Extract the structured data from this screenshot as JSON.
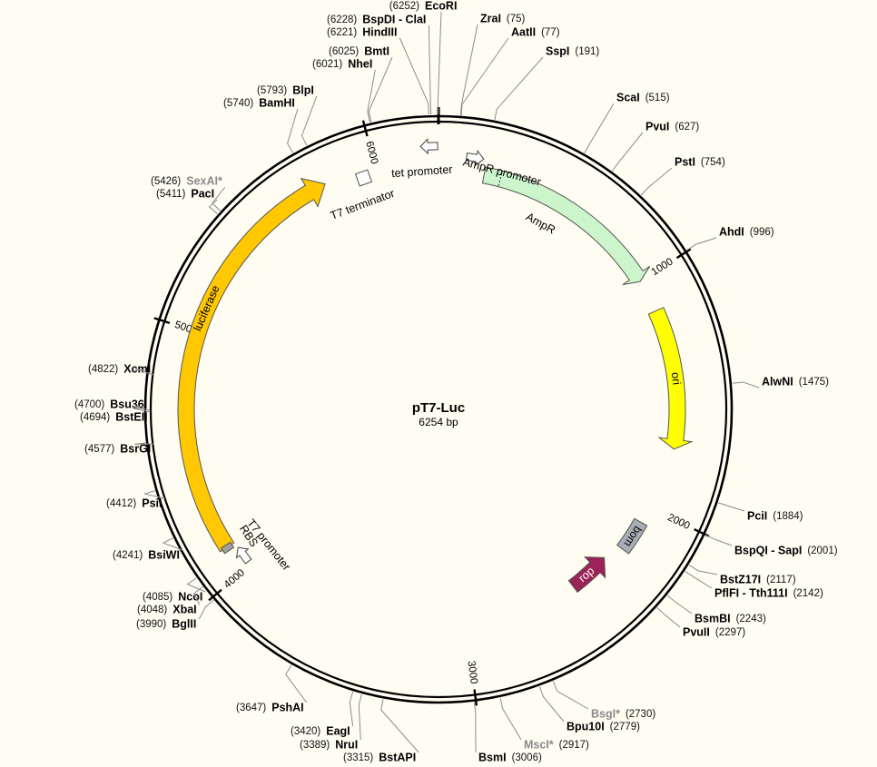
{
  "plasmid": {
    "name": "pT7-Luc",
    "size_label": "6254 bp",
    "length": 6254
  },
  "ticks": [
    1000,
    2000,
    3000,
    4000,
    5000,
    6000
  ],
  "features": [
    {
      "id": "ampr",
      "label": "AmpR",
      "type": "cds",
      "start": 191,
      "end": 1001,
      "strand": 1,
      "color": "#ccf5cc"
    },
    {
      "id": "ori",
      "label": "ori",
      "type": "origin",
      "start": 1140,
      "end": 1730,
      "strand": 1,
      "color": "#ffff00"
    },
    {
      "id": "bom",
      "label": "bom",
      "type": "box",
      "start": 2070,
      "end": 2210,
      "strand": 1,
      "color": "#a6adb4"
    },
    {
      "id": "rop",
      "label": "rop",
      "type": "cds",
      "start": 2290,
      "end": 2480,
      "strand": -1,
      "color": "#9b2355"
    },
    {
      "id": "luciferase",
      "label": "luciferase",
      "type": "cds",
      "start": 4115,
      "end": 5790,
      "strand": 1,
      "color": "#ffc800"
    },
    {
      "id": "rbs",
      "label": "RBS",
      "type": "box",
      "start": 4100,
      "end": 4125,
      "strand": 1,
      "color": "#a0a0a0"
    },
    {
      "id": "t7-promoter",
      "label": "T7 promoter",
      "type": "promoter",
      "start": 4030,
      "end": 4075,
      "strand": 1,
      "color": "#ffffff"
    },
    {
      "id": "t7-terminator",
      "label": "T7 terminator",
      "type": "terminator",
      "start": 5920,
      "end": 5965,
      "strand": 1,
      "color": "#ffffff"
    },
    {
      "id": "tet-promoter",
      "label": "tet promoter",
      "type": "promoter",
      "start": 6205,
      "end": 6235,
      "strand": -1,
      "color": "#ffffff"
    },
    {
      "id": "ampr-promoter",
      "label": "AmpR promoter",
      "type": "promoter",
      "start": 95,
      "end": 190,
      "strand": 1,
      "color": "#ffffff"
    }
  ],
  "sites": [
    {
      "name": "EcoRI",
      "pos": "(6252)",
      "bp": 6252
    },
    {
      "name": "BspDI - ClaI",
      "pos": "(6228)",
      "bp": 6228
    },
    {
      "name": "HindIII",
      "pos": "(6221)",
      "bp": 6221
    },
    {
      "name": "BmtI",
      "pos": "(6025)",
      "bp": 6025
    },
    {
      "name": "NheI",
      "pos": "(6021)",
      "bp": 6021
    },
    {
      "name": "BlpI",
      "pos": "(5793)",
      "bp": 5793
    },
    {
      "name": "BamHI",
      "pos": "(5740)",
      "bp": 5740
    },
    {
      "name": "SexAI*",
      "pos": "(5426)",
      "bp": 5426,
      "star": true
    },
    {
      "name": "PacI",
      "pos": "(5411)",
      "bp": 5411
    },
    {
      "name": "XcmI",
      "pos": "(4822)",
      "bp": 4822
    },
    {
      "name": "Bsu36I",
      "pos": "(4700)",
      "bp": 4700
    },
    {
      "name": "BstEII",
      "pos": "(4694)",
      "bp": 4694
    },
    {
      "name": "BsrGI",
      "pos": "(4577)",
      "bp": 4577
    },
    {
      "name": "PsiI",
      "pos": "(4412)",
      "bp": 4412
    },
    {
      "name": "BsiWI",
      "pos": "(4241)",
      "bp": 4241
    },
    {
      "name": "NcoI",
      "pos": "(4085)",
      "bp": 4085
    },
    {
      "name": "XbaI",
      "pos": "(4048)",
      "bp": 4048
    },
    {
      "name": "BglII",
      "pos": "(3990)",
      "bp": 3990
    },
    {
      "name": "PshAI",
      "pos": "(3647)",
      "bp": 3647
    },
    {
      "name": "EagI",
      "pos": "(3420)",
      "bp": 3420
    },
    {
      "name": "NruI",
      "pos": "(3389)",
      "bp": 3389
    },
    {
      "name": "BstAPI",
      "pos": "(3315)",
      "bp": 3315
    },
    {
      "name": "BsmI",
      "pos": "(3006)",
      "bp": 3006
    },
    {
      "name": "MscI*",
      "pos": "(2917)",
      "bp": 2917,
      "star": true
    },
    {
      "name": "Bpu10I",
      "pos": "(2779)",
      "bp": 2779
    },
    {
      "name": "BsgI*",
      "pos": "(2730)",
      "bp": 2730,
      "star": true
    },
    {
      "name": "PvuII",
      "pos": "(2297)",
      "bp": 2297
    },
    {
      "name": "BsmBI",
      "pos": "(2243)",
      "bp": 2243
    },
    {
      "name": "PflFI - Tth111I",
      "pos": "(2142)",
      "bp": 2142
    },
    {
      "name": "BstZ17I",
      "pos": "(2117)",
      "bp": 2117
    },
    {
      "name": "BspQI - SapI",
      "pos": "(2001)",
      "bp": 2001
    },
    {
      "name": "PciI",
      "pos": "(1884)",
      "bp": 1884
    },
    {
      "name": "AlwNI",
      "pos": "(1475)",
      "bp": 1475
    },
    {
      "name": "AhdI",
      "pos": "(996)",
      "bp": 996
    },
    {
      "name": "PstI",
      "pos": "(754)",
      "bp": 754
    },
    {
      "name": "PvuI",
      "pos": "(627)",
      "bp": 627
    },
    {
      "name": "ScaI",
      "pos": "(515)",
      "bp": 515
    },
    {
      "name": "SspI",
      "pos": "(191)",
      "bp": 191
    },
    {
      "name": "AatII",
      "pos": "(77)",
      "bp": 77
    },
    {
      "name": "ZraI",
      "pos": "(75)",
      "bp": 75
    }
  ]
}
